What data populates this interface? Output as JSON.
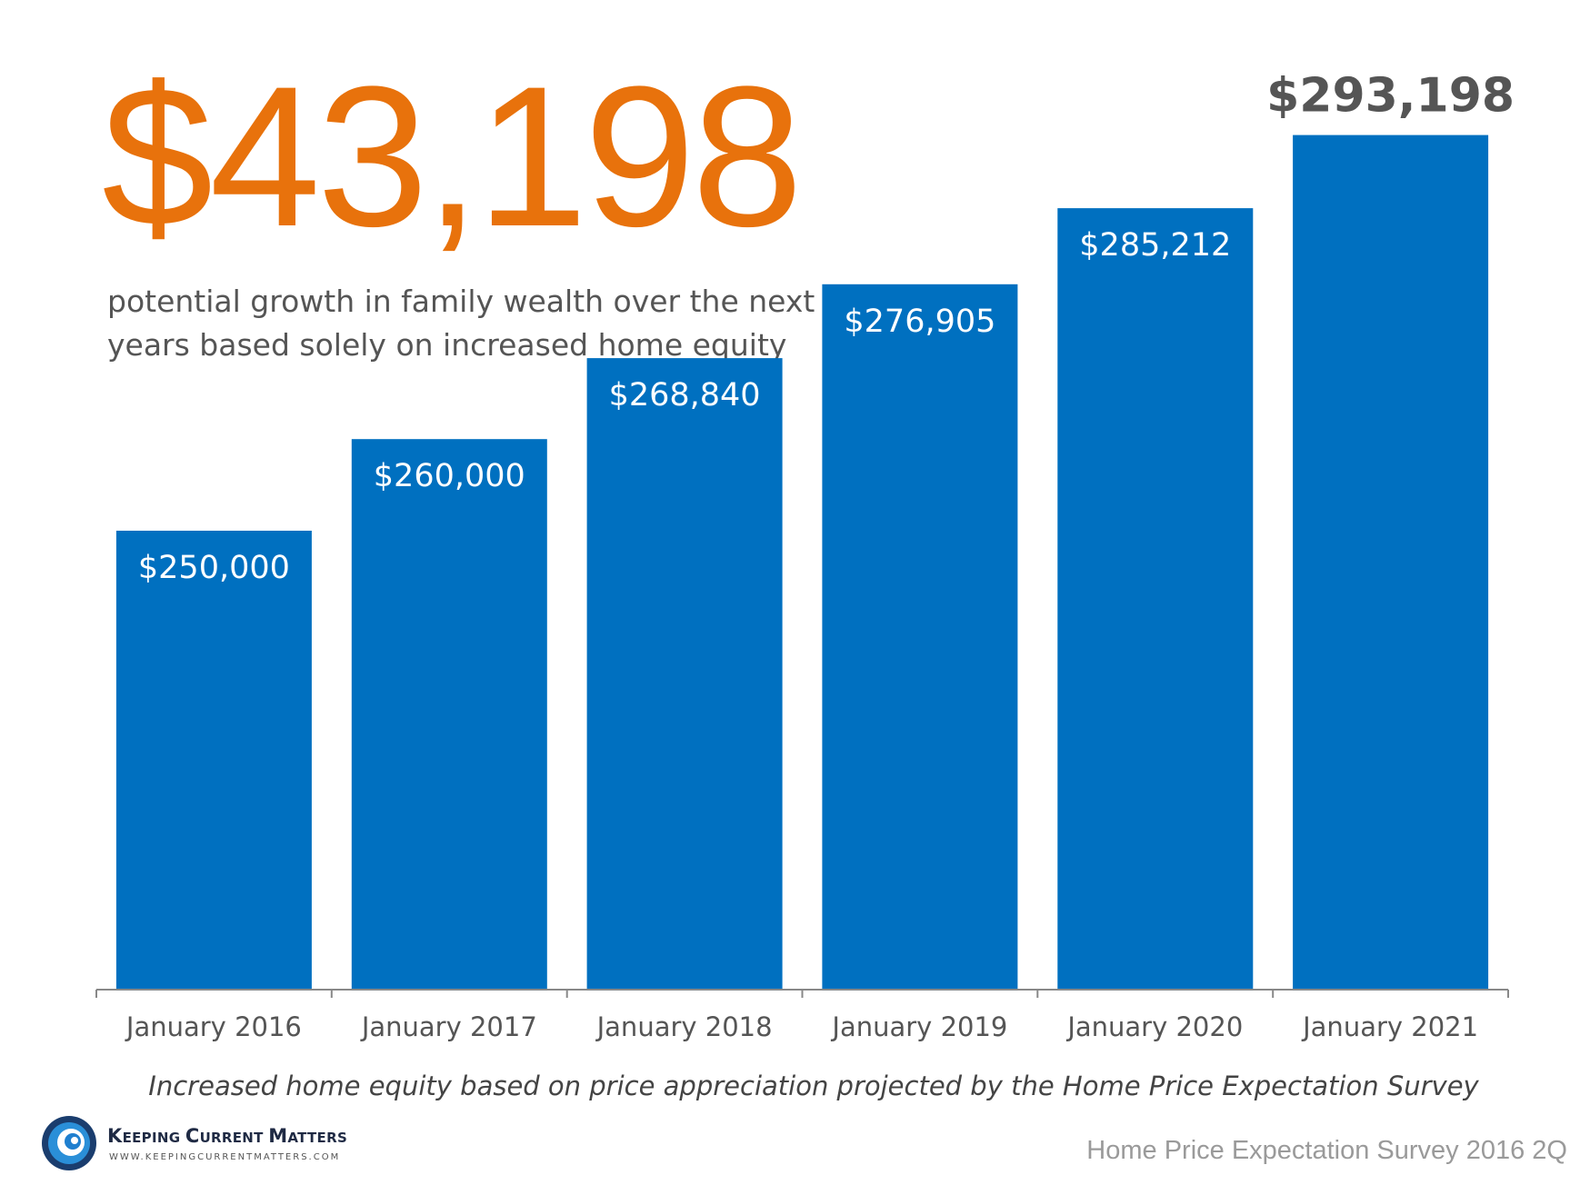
{
  "headline": {
    "value": "$43,198",
    "description": "potential growth in family wealth over the next five years based solely on increased home equity"
  },
  "footnote": "Increased home equity based on price appreciation projected by the Home Price Expectation Survey",
  "source": "Home Price Expectation Survey 2016 2Q",
  "logo": {
    "name_parts": [
      {
        "text": "K",
        "big": true
      },
      {
        "text": "EEPING ",
        "big": false
      },
      {
        "text": "C",
        "big": true
      },
      {
        "text": "URRENT ",
        "big": false
      },
      {
        "text": "M",
        "big": true
      },
      {
        "text": "ATTERS",
        "big": false
      }
    ],
    "url": "WWW.KEEPINGCURRENTMATTERS.COM",
    "icon": "swirl-logo-icon"
  },
  "colors": {
    "bar": "#0070c0",
    "headline": "#e8720c",
    "text": "#555555",
    "bar_label": "#ffffff",
    "top_label": "#555555"
  },
  "chart_data": {
    "type": "bar",
    "categories": [
      "January 2016",
      "January 2017",
      "January 2018",
      "January 2019",
      "January 2020",
      "January 2021"
    ],
    "values": [
      250000,
      260000,
      268840,
      276905,
      285212,
      293198
    ],
    "data_labels": [
      "$250,000",
      "$260,000",
      "$268,840",
      "$276,905",
      "$285,212",
      "$293,198"
    ],
    "label_position": [
      "inside",
      "inside",
      "inside",
      "inside",
      "inside",
      "above"
    ],
    "ylim": [
      200000,
      300000
    ],
    "grid": false,
    "legend": "none"
  }
}
